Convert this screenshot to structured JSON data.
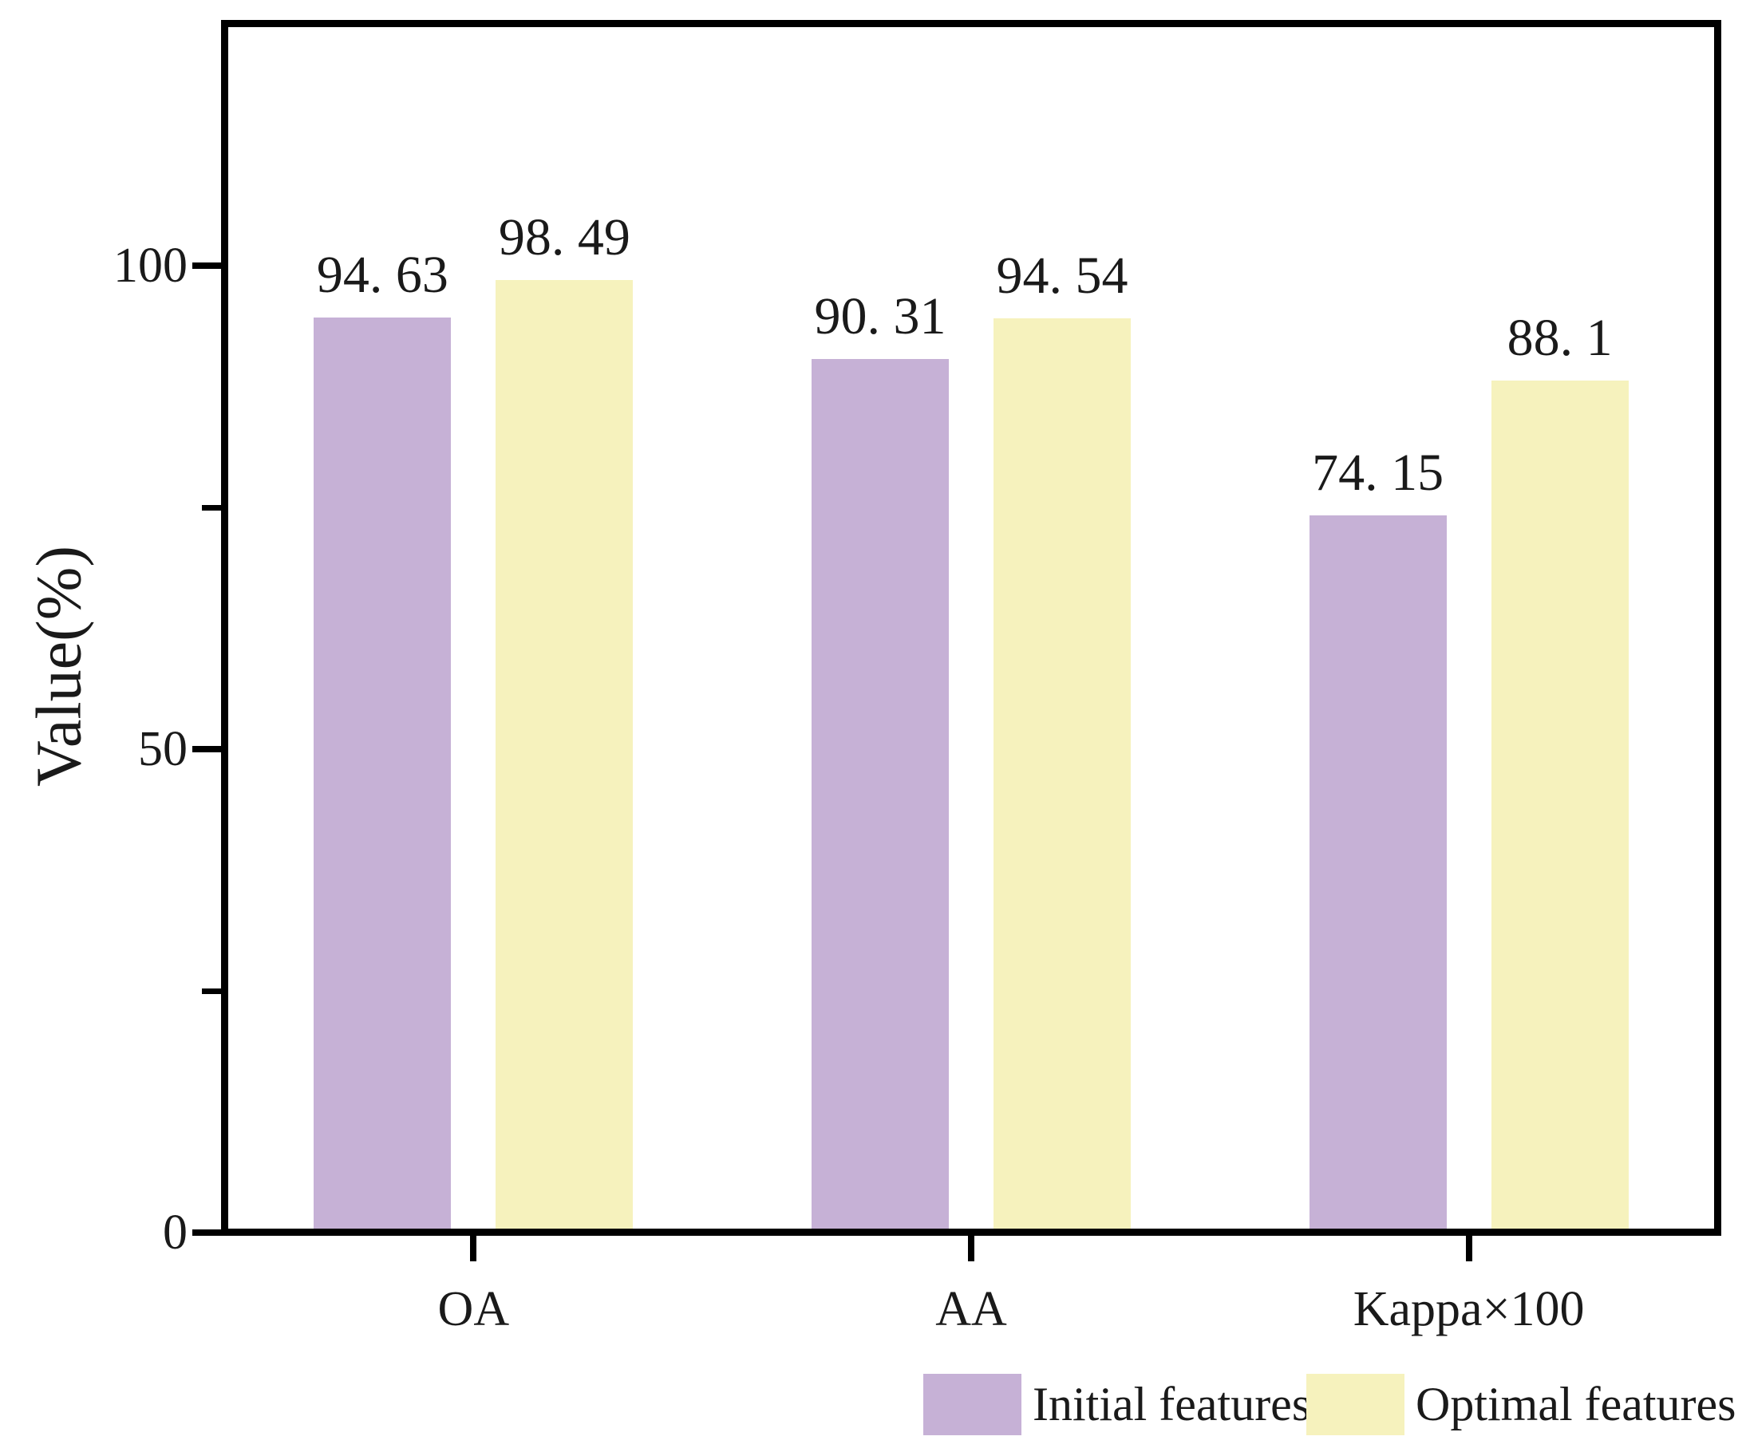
{
  "chart_data": {
    "type": "bar",
    "title": "",
    "ylabel": "Value(%)",
    "xlabel": "",
    "categories": [
      "OA",
      "AA",
      "Kappa×100"
    ],
    "series": [
      {
        "name": "Initial features",
        "color": "#c6b1d6",
        "values": [
          94.63,
          90.31,
          74.15
        ],
        "display_labels": [
          "94. 63",
          "90. 31",
          "74. 15"
        ]
      },
      {
        "name": "Optimal features",
        "color": "#f6f2bd",
        "values": [
          98.49,
          94.54,
          88.1
        ],
        "display_labels": [
          "98. 49",
          "94. 54",
          "88. 1"
        ]
      }
    ],
    "ylim": [
      0,
      125
    ],
    "yticks_major": [
      0,
      50,
      100
    ],
    "yticks_minor": [
      25,
      75
    ],
    "grid": false,
    "legend_position": "bottom-right",
    "axis_color": "#000000",
    "text_color": "#1a1a1a",
    "background_color": "#ffffff"
  }
}
